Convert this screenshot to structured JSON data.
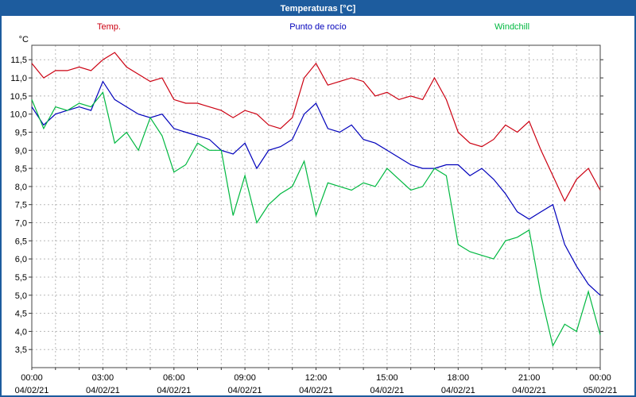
{
  "window": {
    "title": "Temperaturas [°C]"
  },
  "legend": [
    {
      "label": "Temp.",
      "color": "#cc0011"
    },
    {
      "label": "Punto de rocío",
      "color": "#0000bb"
    },
    {
      "label": "Windchill",
      "color": "#00b840"
    }
  ],
  "chart_data": {
    "type": "line",
    "title": "Temperaturas [°C]",
    "xlabel": "",
    "ylabel": "°C",
    "ylim": [
      3.0,
      11.9
    ],
    "y_tick_min": 3.5,
    "y_tick_max": 11.5,
    "y_tick_step": 0.5,
    "grid": {
      "vertical_every_hours": 1,
      "horizontal_every": 0.5,
      "style": "dashed"
    },
    "legend_position": "top",
    "x_hours": [
      0,
      24
    ],
    "x_step_hours": 0.5,
    "x_tick_times": [
      "00:00",
      "03:00",
      "06:00",
      "09:00",
      "12:00",
      "15:00",
      "18:00",
      "21:00",
      "00:00"
    ],
    "x_tick_dates": [
      "04/02/21",
      "04/02/21",
      "04/02/21",
      "04/02/21",
      "04/02/21",
      "04/02/21",
      "04/02/21",
      "04/02/21",
      "05/02/21"
    ],
    "series": [
      {
        "name": "Temp.",
        "color": "#cc0011",
        "values": [
          11.4,
          11.0,
          11.2,
          11.2,
          11.3,
          11.2,
          11.5,
          11.7,
          11.3,
          11.1,
          10.9,
          11.0,
          10.4,
          10.3,
          10.3,
          10.2,
          10.1,
          9.9,
          10.1,
          10.0,
          9.7,
          9.6,
          9.9,
          11.0,
          11.4,
          10.8,
          10.9,
          11.0,
          10.9,
          10.5,
          10.6,
          10.4,
          10.5,
          10.4,
          11.0,
          10.4,
          9.5,
          9.2,
          9.1,
          9.3,
          9.7,
          9.5,
          9.8,
          9.0,
          8.3,
          7.6,
          8.2,
          8.5,
          7.9
        ]
      },
      {
        "name": "Punto de rocío",
        "color": "#0000bb",
        "values": [
          10.2,
          9.7,
          10.0,
          10.1,
          10.2,
          10.1,
          10.9,
          10.4,
          10.2,
          10.0,
          9.9,
          10.0,
          9.6,
          9.5,
          9.4,
          9.3,
          9.0,
          8.9,
          9.2,
          8.5,
          9.0,
          9.1,
          9.3,
          10.0,
          10.3,
          9.6,
          9.5,
          9.7,
          9.3,
          9.2,
          9.0,
          8.8,
          8.6,
          8.5,
          8.5,
          8.6,
          8.6,
          8.3,
          8.5,
          8.2,
          7.8,
          7.3,
          7.1,
          7.3,
          7.5,
          6.4,
          5.8,
          5.3,
          5.0
        ]
      },
      {
        "name": "Windchill",
        "color": "#00b840",
        "values": [
          10.4,
          9.6,
          10.2,
          10.1,
          10.3,
          10.2,
          10.6,
          9.2,
          9.5,
          9.0,
          9.9,
          9.4,
          8.4,
          8.6,
          9.2,
          9.0,
          9.0,
          7.2,
          8.3,
          7.0,
          7.5,
          7.8,
          8.0,
          8.7,
          7.2,
          8.1,
          8.0,
          7.9,
          8.1,
          8.0,
          8.5,
          8.2,
          7.9,
          8.0,
          8.5,
          8.3,
          6.4,
          6.2,
          6.1,
          6.0,
          6.5,
          6.6,
          6.8,
          5.0,
          3.6,
          4.2,
          4.0,
          5.1,
          3.9
        ]
      }
    ]
  }
}
